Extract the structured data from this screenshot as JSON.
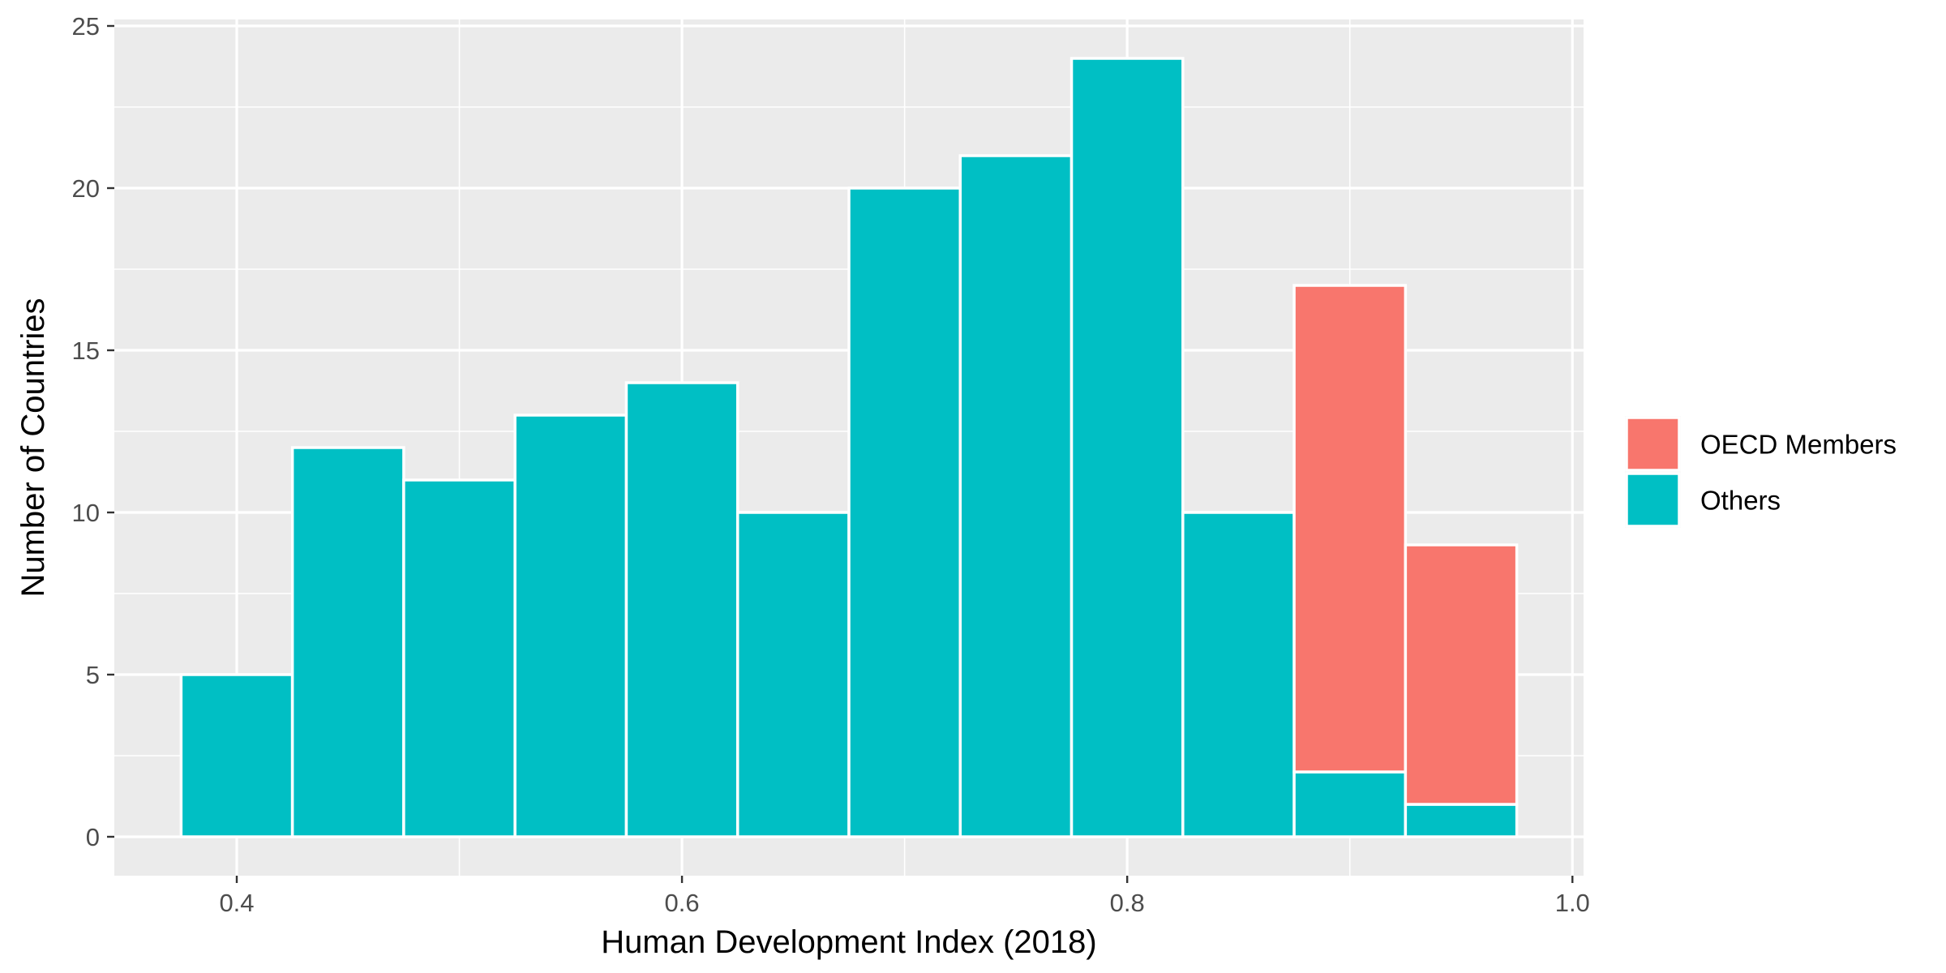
{
  "chart_data": {
    "type": "bar",
    "stacked": true,
    "bin_width": 0.05,
    "x": [
      0.4,
      0.45,
      0.5,
      0.55,
      0.6,
      0.65,
      0.7,
      0.75,
      0.8,
      0.85,
      0.9,
      0.95
    ],
    "series": [
      {
        "name": "OECD Members",
        "color": "#F8766D",
        "values": [
          0,
          0,
          0,
          0,
          0,
          0,
          0,
          0,
          0,
          0,
          15,
          8
        ]
      },
      {
        "name": "Others",
        "color": "#00BFC4",
        "values": [
          5,
          12,
          11,
          13,
          14,
          10,
          20,
          21,
          24,
          10,
          2,
          1
        ]
      }
    ],
    "xlabel": "Human Development Index (2018)",
    "ylabel": "Number of Countries",
    "xlim": [
      0.345,
      1.005
    ],
    "ylim": [
      -1.2,
      25.2
    ],
    "x_ticks": [
      "0.4",
      "0.6",
      "0.8",
      "1.0"
    ],
    "y_ticks": [
      "0",
      "5",
      "10",
      "15",
      "20",
      "25"
    ],
    "grid": true,
    "legend_position": "right",
    "panel_background": "#EBEBEB",
    "grid_color": "#FFFFFF"
  }
}
